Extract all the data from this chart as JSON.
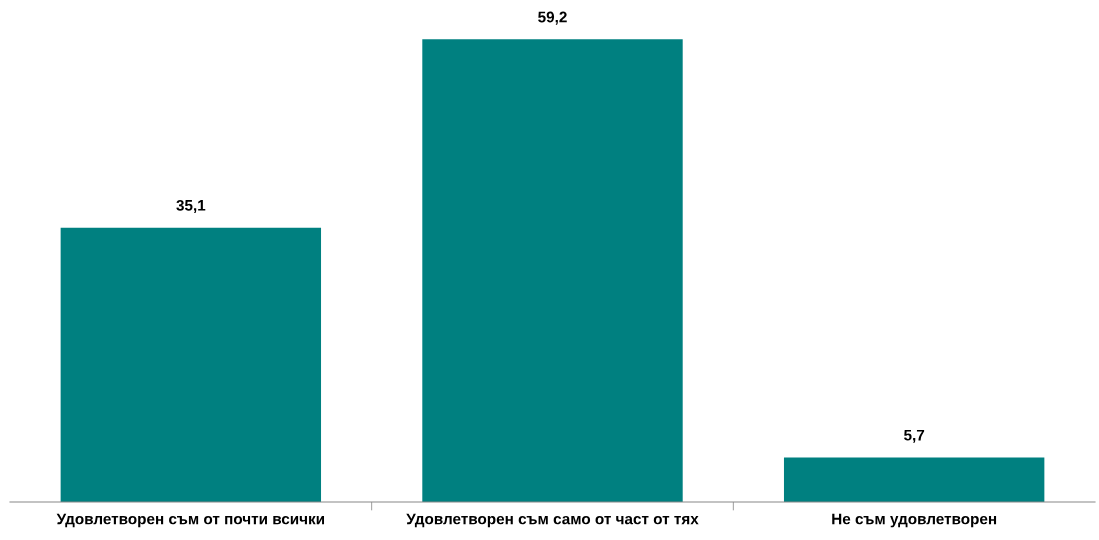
{
  "chart_data": {
    "type": "bar",
    "categories": [
      "Удовлетворен съм от почти всички",
      "Удовлетворен съм само от част от тях",
      "Не съм удовлетворен"
    ],
    "values": [
      35.1,
      59.2,
      5.7
    ],
    "value_labels": [
      "35,1",
      "59,2",
      "5,7"
    ],
    "color": "#008080",
    "grid": false,
    "legend": false
  }
}
